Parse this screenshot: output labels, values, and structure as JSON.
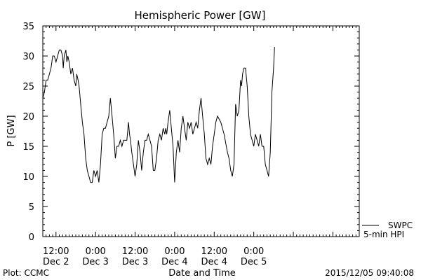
{
  "chart_data": {
    "type": "line",
    "title": "Hemispheric Power [GW]",
    "ylabel": "P [GW]",
    "xlabel": "Date and Time",
    "ylim": [
      0,
      35
    ],
    "y_ticks": [
      0,
      5,
      10,
      15,
      20,
      25,
      30,
      35
    ],
    "xlim_hours": [
      0,
      96
    ],
    "x_ticks": [
      {
        "hour": 4,
        "time": "12:00",
        "date": "Dec 2"
      },
      {
        "hour": 16,
        "time": "0:00",
        "date": "Dec 3"
      },
      {
        "hour": 28,
        "time": "12:00",
        "date": "Dec 3"
      },
      {
        "hour": 40,
        "time": "0:00",
        "date": "Dec 4"
      },
      {
        "hour": 52,
        "time": "12:00",
        "date": "Dec 4"
      },
      {
        "hour": 64,
        "time": "0:00",
        "date": "Dec 5"
      }
    ],
    "legend": {
      "placement": "bottom-right",
      "entries": [
        "SWPC",
        "5-min HPI"
      ]
    },
    "grid": false,
    "series": [
      {
        "name": "SWPC",
        "points": [
          [
            0.0,
            23
          ],
          [
            0.5,
            24
          ],
          [
            1.0,
            26
          ],
          [
            1.5,
            26
          ],
          [
            2.0,
            27
          ],
          [
            2.5,
            28
          ],
          [
            3.0,
            30
          ],
          [
            3.5,
            30
          ],
          [
            4.0,
            29
          ],
          [
            4.5,
            30
          ],
          [
            5.0,
            31
          ],
          [
            5.5,
            31
          ],
          [
            6.0,
            30
          ],
          [
            6.2,
            28
          ],
          [
            6.5,
            30
          ],
          [
            7.0,
            31
          ],
          [
            7.3,
            29
          ],
          [
            7.6,
            30
          ],
          [
            8.0,
            29
          ],
          [
            8.5,
            27
          ],
          [
            9.0,
            28
          ],
          [
            9.5,
            26
          ],
          [
            10.0,
            25
          ],
          [
            10.3,
            27
          ],
          [
            10.7,
            26
          ],
          [
            11.0,
            25
          ],
          [
            11.5,
            22
          ],
          [
            12.0,
            19
          ],
          [
            12.5,
            17
          ],
          [
            13.0,
            13
          ],
          [
            13.5,
            11
          ],
          [
            14.0,
            10
          ],
          [
            14.5,
            9
          ],
          [
            15.0,
            9
          ],
          [
            15.5,
            11
          ],
          [
            16.0,
            10
          ],
          [
            16.5,
            11
          ],
          [
            17.0,
            9
          ],
          [
            17.5,
            12
          ],
          [
            18.0,
            17
          ],
          [
            18.5,
            18
          ],
          [
            19.0,
            18
          ],
          [
            19.5,
            19
          ],
          [
            20.0,
            20
          ],
          [
            20.5,
            23
          ],
          [
            21.0,
            20
          ],
          [
            21.5,
            17
          ],
          [
            22.0,
            13
          ],
          [
            22.5,
            15
          ],
          [
            23.0,
            15
          ],
          [
            23.5,
            16
          ],
          [
            24.0,
            15
          ],
          [
            24.5,
            16
          ],
          [
            25.0,
            16
          ],
          [
            25.5,
            16
          ],
          [
            26.0,
            19
          ],
          [
            26.3,
            17
          ],
          [
            26.6,
            16
          ],
          [
            27.0,
            14
          ],
          [
            27.5,
            12
          ],
          [
            28.0,
            10
          ],
          [
            28.5,
            12
          ],
          [
            29.0,
            16
          ],
          [
            29.5,
            14
          ],
          [
            30.0,
            11
          ],
          [
            30.5,
            14
          ],
          [
            31.0,
            16
          ],
          [
            31.5,
            16
          ],
          [
            32.0,
            17
          ],
          [
            32.5,
            16
          ],
          [
            33.0,
            15
          ],
          [
            33.5,
            11
          ],
          [
            34.0,
            11
          ],
          [
            34.5,
            13
          ],
          [
            35.0,
            16
          ],
          [
            35.5,
            17
          ],
          [
            36.0,
            16
          ],
          [
            36.5,
            18
          ],
          [
            37.0,
            17
          ],
          [
            37.3,
            18
          ],
          [
            37.6,
            17
          ],
          [
            38.0,
            19
          ],
          [
            38.5,
            21
          ],
          [
            39.0,
            18
          ],
          [
            39.5,
            15
          ],
          [
            40.0,
            9
          ],
          [
            40.5,
            14
          ],
          [
            41.0,
            16
          ],
          [
            41.5,
            14
          ],
          [
            42.0,
            18
          ],
          [
            42.5,
            20
          ],
          [
            43.0,
            18
          ],
          [
            43.5,
            16
          ],
          [
            44.0,
            19
          ],
          [
            44.5,
            18
          ],
          [
            45.0,
            19
          ],
          [
            45.5,
            17
          ],
          [
            46.0,
            18
          ],
          [
            46.5,
            19
          ],
          [
            47.0,
            18
          ],
          [
            47.5,
            21
          ],
          [
            48.0,
            23
          ],
          [
            48.5,
            20
          ],
          [
            49.0,
            17
          ],
          [
            49.5,
            13
          ],
          [
            50.0,
            12
          ],
          [
            50.5,
            13
          ],
          [
            51.0,
            12
          ],
          [
            51.5,
            15
          ],
          [
            52.0,
            17
          ],
          [
            52.5,
            19
          ],
          [
            53.0,
            20
          ],
          [
            54.0,
            19
          ],
          [
            55.0,
            17
          ],
          [
            56.0,
            14
          ],
          [
            56.5,
            13
          ],
          [
            57.0,
            11
          ],
          [
            57.5,
            10
          ],
          [
            58.0,
            12
          ],
          [
            58.5,
            22
          ],
          [
            59.0,
            20
          ],
          [
            59.5,
            21
          ],
          [
            60.0,
            26
          ],
          [
            60.3,
            25
          ],
          [
            60.6,
            27
          ],
          [
            61.0,
            28
          ],
          [
            61.5,
            28
          ],
          [
            62.0,
            25
          ],
          [
            62.5,
            20
          ],
          [
            63.0,
            17
          ],
          [
            63.5,
            16
          ],
          [
            64.0,
            15
          ],
          [
            64.5,
            17
          ],
          [
            65.0,
            16
          ],
          [
            65.5,
            15
          ],
          [
            66.0,
            17
          ],
          [
            66.5,
            15
          ],
          [
            67.0,
            15
          ],
          [
            67.5,
            12
          ],
          [
            68.0,
            11
          ],
          [
            68.5,
            10
          ],
          [
            69.0,
            14
          ],
          [
            69.5,
            24
          ],
          [
            70.0,
            28
          ],
          [
            70.3,
            31.5
          ]
        ]
      }
    ]
  },
  "footer": {
    "plot_credit": "Plot: CCMC",
    "timestamp": "2015/12/05 09:40:08"
  }
}
